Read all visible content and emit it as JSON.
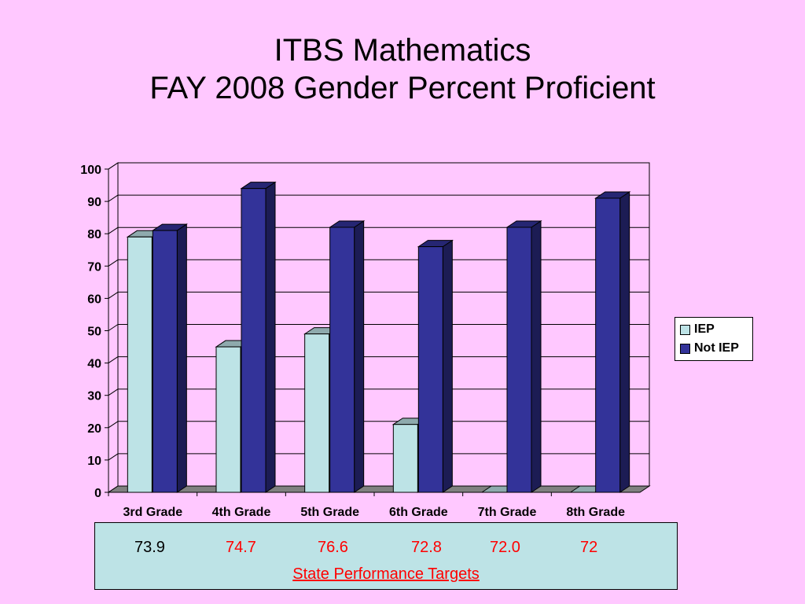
{
  "slide": {
    "title_line1": "ITBS Mathematics",
    "title_line2": "FAY 2008 Gender Percent Proficient"
  },
  "chart_data": {
    "type": "bar",
    "categories": [
      "3rd Grade",
      "4th Grade",
      "5th Grade",
      "6th Grade",
      "7th Grade",
      "8th Grade"
    ],
    "series": [
      {
        "name": "IEP",
        "values": [
          79,
          45,
          49,
          21,
          0,
          0
        ],
        "color": "#bde3e6"
      },
      {
        "name": "Not IEP",
        "values": [
          81,
          94,
          82,
          76,
          82,
          91
        ],
        "color": "#333399"
      }
    ],
    "yticks": [
      "0",
      "10",
      "20",
      "30",
      "40",
      "50",
      "60",
      "70",
      "80",
      "90",
      "100"
    ],
    "ylim": [
      0,
      100
    ],
    "grid": true,
    "legend_position": "right",
    "style": "3d-clustered-column"
  },
  "targets": {
    "values": [
      {
        "text": "73.9",
        "color": "#000000"
      },
      {
        "text": "74.7",
        "color": "#ff0000"
      },
      {
        "text": "76.6",
        "color": "#ff0000"
      },
      {
        "text": "72.8",
        "color": "#ff0000"
      },
      {
        "text": "72.0",
        "color": "#ff0000"
      },
      {
        "text": "72",
        "color": "#ff0000"
      }
    ],
    "caption": "State Performance Targets",
    "caption_color": "#ff0000"
  }
}
